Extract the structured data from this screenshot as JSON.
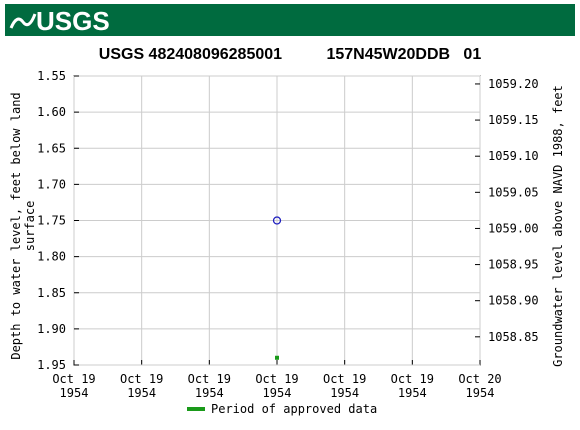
{
  "header": {
    "logo": "USGS"
  },
  "chart_data": {
    "type": "scatter",
    "title": "USGS 482408096285001          157N45W20DDB   01",
    "y_label": "Depth to water level, feet below land\nsurface",
    "y2_label": "Groundwater level above NAVD 1988, feet",
    "xlim": [
      0,
      24
    ],
    "xticks": [
      {
        "value": 0,
        "label": "Oct 19\n1954"
      },
      {
        "value": 4,
        "label": "Oct 19\n1954"
      },
      {
        "value": 8,
        "label": "Oct 19\n1954"
      },
      {
        "value": 12,
        "label": "Oct 19\n1954"
      },
      {
        "value": 16,
        "label": "Oct 19\n1954"
      },
      {
        "value": 20,
        "label": "Oct 19\n1954"
      },
      {
        "value": 24,
        "label": "Oct 20\n1954"
      }
    ],
    "ylim": [
      1.55,
      1.95
    ],
    "yticks": [
      1.55,
      {
        "value": 1.6,
        "label": "1.60"
      },
      1.65,
      {
        "value": 1.7,
        "label": "1.70"
      },
      1.75,
      {
        "value": 1.8,
        "label": "1.80"
      },
      1.85,
      {
        "value": 1.9,
        "label": "1.90"
      },
      1.95
    ],
    "y2lim": [
      1059.211,
      1058.811
    ],
    "y2ticks": [
      {
        "value": 1059.2,
        "label": "1059.20"
      },
      1059.15,
      {
        "value": 1059.1,
        "label": "1059.10"
      },
      1059.05,
      {
        "value": 1059.0,
        "label": "1059.00"
      },
      1058.95,
      {
        "value": 1058.9,
        "label": "1058.90"
      },
      1058.85
    ],
    "grid": true,
    "series": [
      {
        "color": "#1f1fbf",
        "marker": "circle",
        "x": [
          12
        ],
        "values": [
          1.75
        ]
      },
      {
        "name": "Period of approved data",
        "color": "#1a9a1a",
        "marker": "square",
        "x": [
          12
        ],
        "values": [
          1.94
        ]
      }
    ]
  }
}
